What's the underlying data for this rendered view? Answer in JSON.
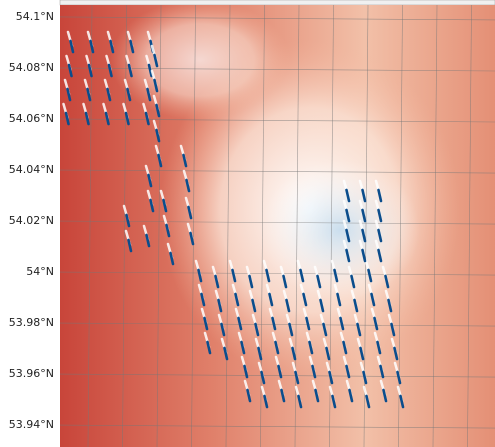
{
  "chart_data": {
    "type": "map",
    "ylim": [
      53.9314,
      54.1047
    ],
    "yticks": [
      {
        "value": 54.1,
        "label": "54.1°N"
      },
      {
        "value": 54.08,
        "label": "54.08°N"
      },
      {
        "value": 54.06,
        "label": "54.06°N"
      },
      {
        "value": 54.04,
        "label": "54.04°N"
      },
      {
        "value": 54.02,
        "label": "54.02°N"
      },
      {
        "value": 54,
        "label": "54°N"
      },
      {
        "value": 53.98,
        "label": "53.98°N"
      },
      {
        "value": 53.96,
        "label": "53.96°N"
      },
      {
        "value": 53.94,
        "label": "53.94°N"
      }
    ],
    "grid": true
  }
}
